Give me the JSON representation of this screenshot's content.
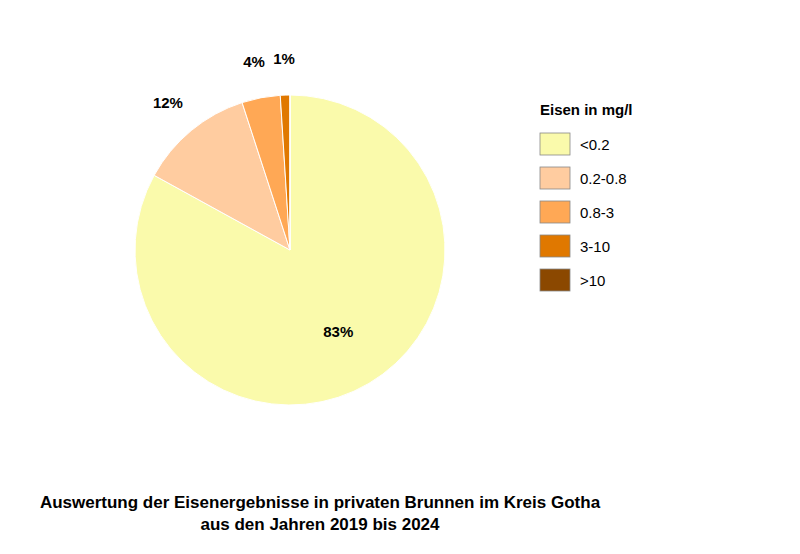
{
  "chart_data": {
    "type": "pie",
    "title": "Auswertung der Eisenergebnisse in privaten Brunnen im Kreis Gotha",
    "subtitle": "aus den Jahren 2019 bis 2024",
    "categories": [
      "<0.2",
      "0.2-0.8",
      "0.8-3",
      "3-10",
      ">10"
    ],
    "values": [
      83,
      12,
      4,
      1,
      0.001
    ],
    "value_labels": [
      "83%",
      "12%",
      "4%",
      "1%",
      null
    ],
    "data_labels": true,
    "colors": [
      "#FAFAAB",
      "#FFCCA0",
      "#FFA855",
      "#E07800",
      "#8B4800"
    ],
    "legend": "right",
    "legend_title": "Eisen in mg/l"
  }
}
